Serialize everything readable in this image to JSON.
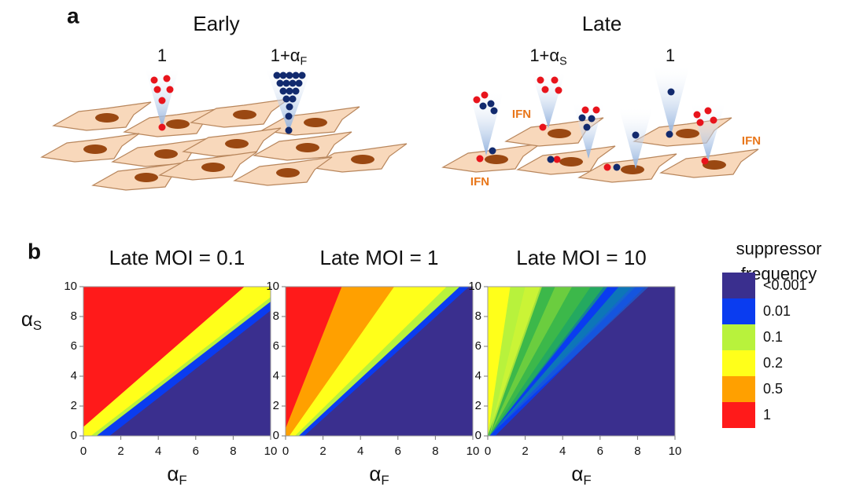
{
  "panel_a": {
    "label": "a",
    "early": {
      "title": "Early",
      "doses": [
        {
          "text": "1"
        },
        {
          "text": "1+α",
          "sub": "F"
        }
      ]
    },
    "late": {
      "title": "Late",
      "doses": [
        {
          "text": "1+α",
          "sub": "S"
        },
        {
          "text": "1"
        }
      ],
      "annotations": [
        "IFN",
        "IFN",
        "IFN"
      ]
    }
  },
  "panel_b": {
    "label": "b",
    "charts": [
      {
        "type": "contour",
        "title": "Late MOI = 0.1",
        "xlim": [
          0,
          10
        ],
        "ylim": [
          0,
          10
        ],
        "xticks": [
          0,
          2,
          4,
          6,
          8,
          10
        ],
        "yticks": [
          0,
          2,
          4,
          6,
          8,
          10
        ],
        "x_label": {
          "text": "α",
          "sub": "F"
        },
        "y_label": {
          "text": "α",
          "sub": "S"
        }
      },
      {
        "type": "contour",
        "title": "Late MOI = 1",
        "xlim": [
          0,
          10
        ],
        "ylim": [
          0,
          10
        ],
        "xticks": [
          0,
          2,
          4,
          6,
          8,
          10
        ],
        "yticks": [
          0,
          2,
          4,
          6,
          8,
          10
        ],
        "x_label": {
          "text": "α",
          "sub": "F"
        }
      },
      {
        "type": "contour",
        "title": "Late MOI = 10",
        "xlim": [
          0,
          10
        ],
        "ylim": [
          0,
          10
        ],
        "xticks": [
          0,
          2,
          4,
          6,
          8,
          10
        ],
        "yticks": [
          0,
          2,
          4,
          6,
          8,
          10
        ],
        "x_label": {
          "text": "α",
          "sub": "F"
        }
      }
    ],
    "legend": {
      "title": [
        "suppressor",
        "frequency"
      ],
      "entries": [
        {
          "label": "<0.001",
          "color": "#3a2f8e"
        },
        {
          "label": "0.01",
          "color": "#0a3cf0"
        },
        {
          "label": "0.1",
          "color": "#b8f23c"
        },
        {
          "label": "0.2",
          "color": "#ffff1a"
        },
        {
          "label": "0.5",
          "color": "#ffa000"
        },
        {
          "label": "1",
          "color": "#ff1a1a"
        }
      ]
    }
  }
}
